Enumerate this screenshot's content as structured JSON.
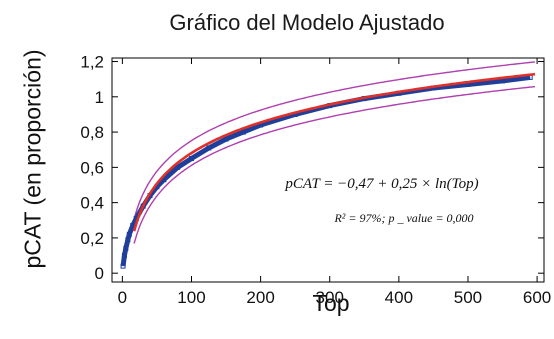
{
  "chart_data": {
    "type": "line",
    "title": "Gráfico del Modelo Ajustado",
    "xlabel": "Top",
    "ylabel": "pCAT (en proporción)",
    "xlim": [
      -15,
      610
    ],
    "ylim": [
      -0.05,
      1.22
    ],
    "xticks": [
      0,
      100,
      200,
      300,
      400,
      500,
      600
    ],
    "xtick_labels": [
      "0",
      "100",
      "200",
      "300",
      "400",
      "500",
      "600"
    ],
    "yticks": [
      0,
      0.2,
      0.4,
      0.6,
      0.8,
      1.0,
      1.2
    ],
    "ytick_labels": [
      "0",
      "0,2",
      "0,4",
      "0,6",
      "0,8",
      "1",
      "1,2"
    ],
    "equation_text": "pCAT = −0,47 + 0,25 × ln(Top)",
    "stats_text": "R² = 97%; p _ value = 0,000",
    "grid": false,
    "series": [
      {
        "role": "observed",
        "color": "#1f3f9a",
        "x": [
          1,
          3,
          5,
          8,
          10,
          15,
          20,
          30,
          40,
          50,
          60,
          80,
          100,
          125,
          150,
          175,
          200,
          250,
          300,
          350,
          400,
          450,
          500,
          550,
          590
        ],
        "y": [
          0.04,
          0.1,
          0.14,
          0.19,
          0.22,
          0.27,
          0.31,
          0.38,
          0.44,
          0.49,
          0.53,
          0.6,
          0.65,
          0.71,
          0.76,
          0.8,
          0.84,
          0.9,
          0.95,
          0.99,
          1.02,
          1.05,
          1.07,
          1.09,
          1.11
        ]
      },
      {
        "role": "fitted",
        "color": "#e0302a",
        "equation": {
          "a": -0.47,
          "b": 0.25
        },
        "x_range": [
          17,
          600
        ]
      },
      {
        "role": "upper-band",
        "color": "#b03fb0",
        "offset": 0.07,
        "x_range": [
          17,
          600
        ]
      },
      {
        "role": "lower-band",
        "color": "#b03fb0",
        "offset": -0.07,
        "x_range": [
          17,
          600
        ]
      }
    ]
  }
}
